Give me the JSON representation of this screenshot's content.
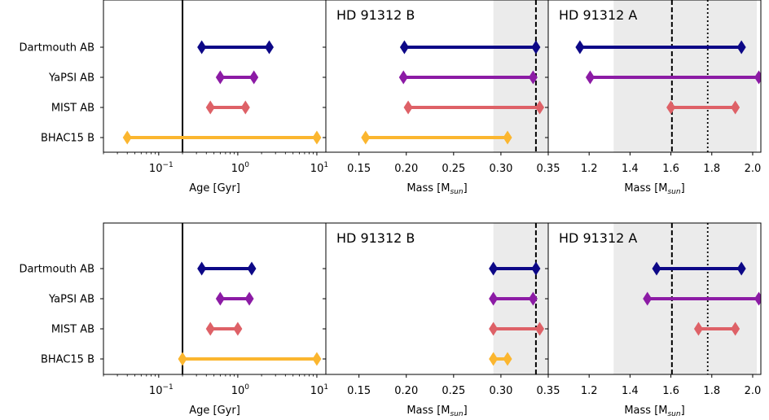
{
  "chart_data": [
    {
      "type": "range",
      "row": "top",
      "categories": [
        "Dartmouth AB",
        "YaPSI AB",
        "MIST AB",
        "BHAC15 B"
      ],
      "colors": [
        "#0d0887",
        "#8c1ba5",
        "#de6167",
        "#fbb62f"
      ],
      "panels": [
        {
          "kind": "age",
          "xlabel": "Age [Gyr]",
          "xscale": "log",
          "xlim": [
            0.02,
            13
          ],
          "ticks": [
            {
              "v": 0.1,
              "base": "10",
              "exp": "−1"
            },
            {
              "v": 1,
              "base": "10",
              "exp": "0"
            },
            {
              "v": 10,
              "base": "10",
              "exp": "1"
            }
          ],
          "minor_ticks": true,
          "vline": {
            "x": 0.2,
            "style": "solid"
          },
          "ranges": [
            [
              0.35,
              2.5
            ],
            [
              0.6,
              1.6
            ],
            [
              0.45,
              1.25
            ],
            [
              0.04,
              10
            ]
          ]
        },
        {
          "kind": "mass",
          "title": "HD 91312 B",
          "xlabel": "Mass [M",
          "xlabel_sub": "sun",
          "xlabel_end": "]",
          "xlim": [
            0.115,
            0.35
          ],
          "ticks": [
            "0.15",
            "0.20",
            "0.25",
            "0.30",
            "0.35"
          ],
          "shade": [
            0.292,
            0.35
          ],
          "vlines": [
            {
              "x": 0.337,
              "style": "dashed"
            }
          ],
          "ranges": [
            [
              0.198,
              0.337
            ],
            [
              0.197,
              0.334
            ],
            [
              0.202,
              0.341
            ],
            [
              0.157,
              0.307
            ]
          ]
        },
        {
          "kind": "mass",
          "title": "HD 91312 A",
          "xlabel": "Mass [M",
          "xlabel_sub": "sun",
          "xlabel_end": "]",
          "xlim": [
            1.0,
            2.04
          ],
          "ticks": [
            "1.2",
            "1.4",
            "1.6",
            "1.8",
            "2.0"
          ],
          "shade": [
            1.32,
            2.02
          ],
          "vlines": [
            {
              "x": 1.605,
              "style": "dashed"
            },
            {
              "x": 1.78,
              "style": "dotted"
            }
          ],
          "ranges": [
            [
              1.155,
              1.945
            ],
            [
              1.205,
              2.03
            ],
            [
              1.6,
              1.915
            ]
          ]
        }
      ]
    },
    {
      "type": "range",
      "row": "bottom",
      "categories": [
        "Dartmouth AB",
        "YaPSI AB",
        "MIST AB",
        "BHAC15 B"
      ],
      "colors": [
        "#0d0887",
        "#8c1ba5",
        "#de6167",
        "#fbb62f"
      ],
      "panels": [
        {
          "kind": "age",
          "xlabel": "Age [Gyr]",
          "xscale": "log",
          "xlim": [
            0.02,
            13
          ],
          "ticks": [
            {
              "v": 0.1,
              "base": "10",
              "exp": "−1"
            },
            {
              "v": 1,
              "base": "10",
              "exp": "0"
            },
            {
              "v": 10,
              "base": "10",
              "exp": "1"
            }
          ],
          "minor_ticks": true,
          "vline": {
            "x": 0.2,
            "style": "solid"
          },
          "ranges": [
            [
              0.35,
              1.5
            ],
            [
              0.6,
              1.4
            ],
            [
              0.45,
              1.0
            ],
            [
              0.2,
              10
            ]
          ]
        },
        {
          "kind": "mass",
          "title": "HD 91312 B",
          "xlabel": "Mass [M",
          "xlabel_sub": "sun",
          "xlabel_end": "]",
          "xlim": [
            0.115,
            0.35
          ],
          "ticks": [
            "0.15",
            "0.20",
            "0.25",
            "0.30",
            "0.35"
          ],
          "shade": [
            0.292,
            0.35
          ],
          "vlines": [
            {
              "x": 0.337,
              "style": "dashed"
            }
          ],
          "ranges": [
            [
              0.292,
              0.337
            ],
            [
              0.292,
              0.334
            ],
            [
              0.292,
              0.341
            ],
            [
              0.292,
              0.307
            ]
          ]
        },
        {
          "kind": "mass",
          "title": "HD 91312 A",
          "xlabel": "Mass [M",
          "xlabel_sub": "sun",
          "xlabel_end": "]",
          "xlim": [
            1.0,
            2.04
          ],
          "ticks": [
            "1.2",
            "1.4",
            "1.6",
            "1.8",
            "2.0"
          ],
          "shade": [
            1.32,
            2.02
          ],
          "vlines": [
            {
              "x": 1.605,
              "style": "dashed"
            },
            {
              "x": 1.78,
              "style": "dotted"
            }
          ],
          "ranges": [
            [
              1.53,
              1.945
            ],
            [
              1.485,
              2.03
            ],
            [
              1.735,
              1.915
            ]
          ]
        }
      ]
    }
  ]
}
